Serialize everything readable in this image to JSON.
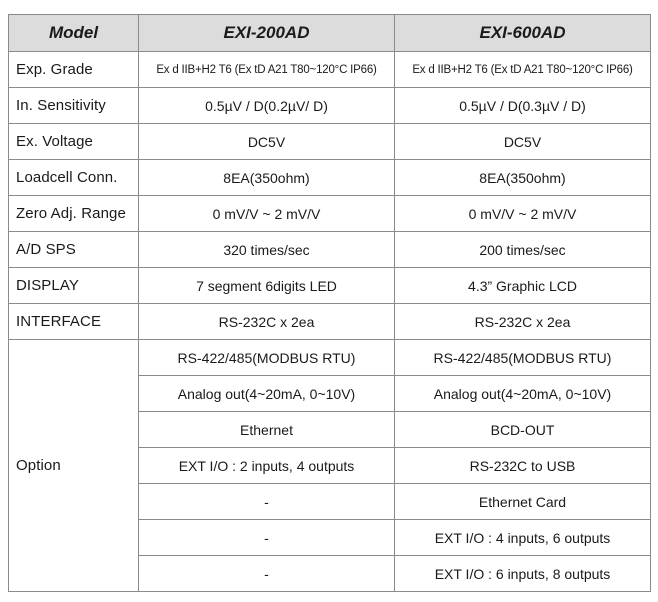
{
  "header": {
    "model": "Model",
    "col1": "EXI-200AD",
    "col2": "EXI-600AD"
  },
  "rows": [
    {
      "label": "Exp. Grade",
      "v1": "Ex d IIB+H2 T6 (Ex tD A21 T80~120°C IP66)",
      "v2": "Ex d IIB+H2 T6 (Ex tD A21 T80~120°C IP66)"
    },
    {
      "label": "In. Sensitivity",
      "v1": "0.5µV / D(0.2µV/ D)",
      "v2": "0.5µV / D(0.3µV / D)"
    },
    {
      "label": "Ex. Voltage",
      "v1": "DC5V",
      "v2": "DC5V"
    },
    {
      "label": "Loadcell Conn.",
      "v1": "8EA(350ohm)",
      "v2": "8EA(350ohm)"
    },
    {
      "label": "Zero Adj. Range",
      "v1": "0 mV/V ~ 2 mV/V",
      "v2": "0 mV/V ~ 2 mV/V"
    },
    {
      "label": "A/D SPS",
      "v1": "320 times/sec",
      "v2": "200 times/sec"
    },
    {
      "label": "DISPLAY",
      "v1": "7 segment 6digits LED",
      "v2": "4.3” Graphic LCD"
    },
    {
      "label": "INTERFACE",
      "v1": "RS-232C x 2ea",
      "v2": "RS-232C x 2ea"
    }
  ],
  "option": {
    "label": "Option",
    "rows": [
      {
        "v1": "RS-422/485(MODBUS RTU)",
        "v2": "RS-422/485(MODBUS RTU)"
      },
      {
        "v1": "Analog out(4~20mA, 0~10V)",
        "v2": "Analog out(4~20mA, 0~10V)"
      },
      {
        "v1": "Ethernet",
        "v2": "BCD-OUT"
      },
      {
        "v1": "EXT I/O : 2 inputs, 4 outputs",
        "v2": "RS-232C to USB"
      },
      {
        "v1": "-",
        "v2": "Ethernet Card"
      },
      {
        "v1": "-",
        "v2": "EXT I/O : 4 inputs, 6 outputs"
      },
      {
        "v1": "-",
        "v2": "EXT I/O : 6 inputs, 8 outputs"
      }
    ]
  }
}
